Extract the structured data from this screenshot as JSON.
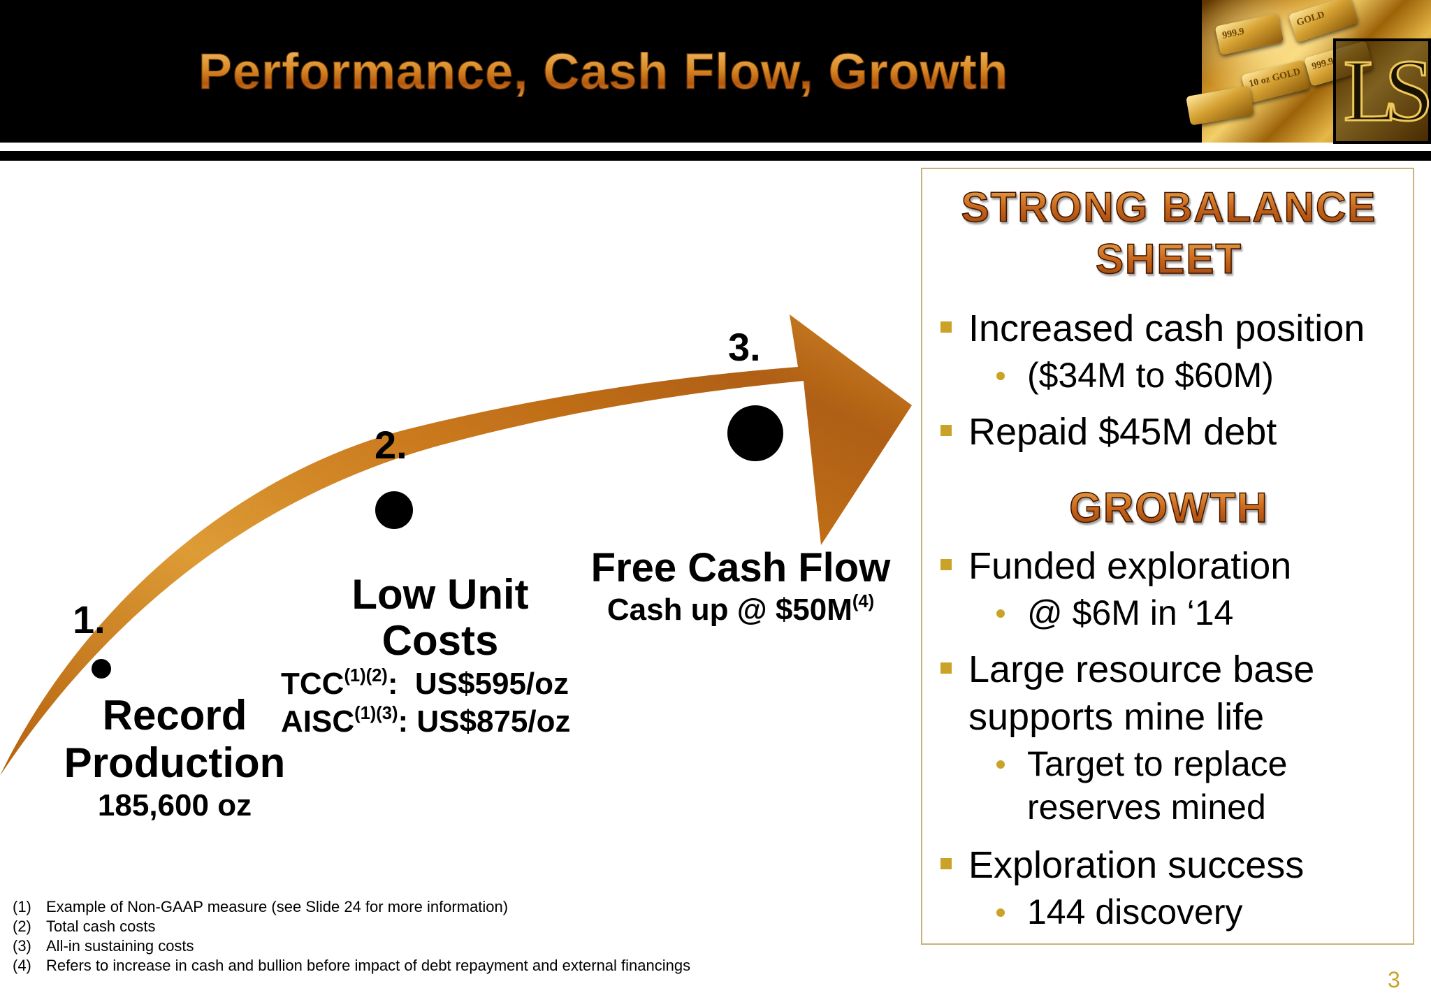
{
  "header": {
    "title": "Performance, Cash Flow, Growth",
    "logo_text": "LS",
    "gold_bar_labels": [
      "999.9",
      "10 oz GOLD",
      "999.9",
      "GOLD"
    ]
  },
  "steps": [
    {
      "number": "1.",
      "title_line1": "Record",
      "title_line2": "Production",
      "subtitle": "185,600 oz"
    },
    {
      "number": "2.",
      "title_line1": "Low Unit",
      "title_line2": "Costs",
      "metrics": [
        {
          "label": "TCC",
          "refs": "(1)(2)",
          "value": "US$595/oz"
        },
        {
          "label": "AISC",
          "refs": "(1)(3)",
          "value": "US$875/oz"
        }
      ]
    },
    {
      "number": "3.",
      "title": "Free Cash Flow",
      "subtitle": "Cash up @ $50M",
      "subtitle_ref": "(4)"
    }
  ],
  "panel": {
    "heading1_line1": "STRONG BALANCE",
    "heading1_line2": "SHEET",
    "balance_items": [
      {
        "text": "Increased cash position",
        "sub": "($34M to $60M)"
      },
      {
        "text": "Repaid $45M debt"
      }
    ],
    "heading2": "GROWTH",
    "growth_items": [
      {
        "text": "Funded exploration",
        "sub": "@ $6M in ‘14"
      },
      {
        "text_line1": "Large resource base",
        "text_line2": "supports mine life",
        "sub_line1": "Target to replace",
        "sub_line2": "reserves mined"
      },
      {
        "text": "Exploration success",
        "sub": "144 discovery"
      }
    ]
  },
  "footnotes": [
    {
      "num": "(1)",
      "text": "Example of Non-GAAP measure (see Slide 24 for more information)"
    },
    {
      "num": "(2)",
      "text": "Total cash costs"
    },
    {
      "num": "(3)",
      "text": "All-in sustaining costs"
    },
    {
      "num": "(4)",
      "text": "Refers to increase in cash and bullion before impact of debt repayment and external financings"
    }
  ],
  "page_number": "3",
  "colors": {
    "accent_gold": "#c9a227",
    "arrow_orange": "#d9841f",
    "header_bg": "#000000"
  }
}
